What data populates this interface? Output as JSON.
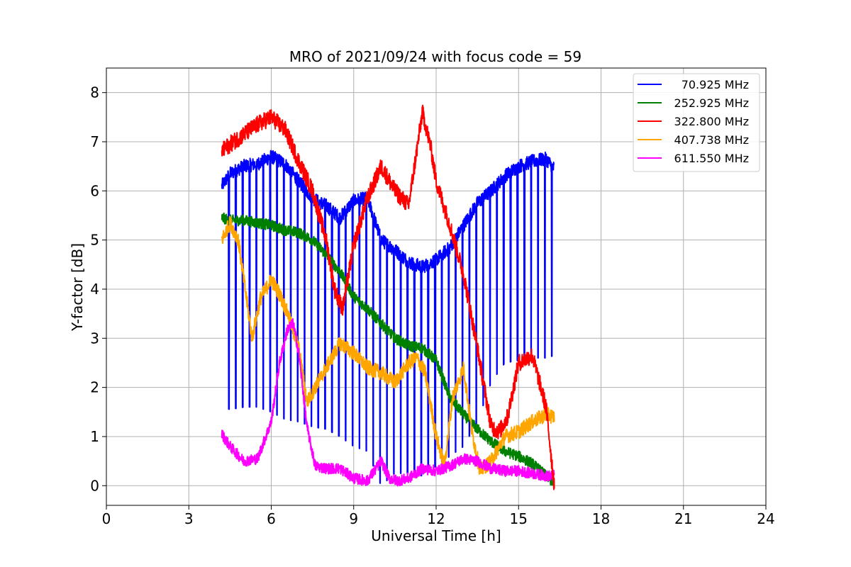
{
  "chart_data": {
    "type": "line",
    "title": "MRO of 2021/09/24 with focus code = 59",
    "xlabel": "Universal Time [h]",
    "ylabel": "Y-factor [dB]",
    "xlim": [
      0,
      24
    ],
    "ylim": [
      -0.4,
      8.5
    ],
    "xticks": [
      0,
      3,
      6,
      9,
      12,
      15,
      18,
      21,
      24
    ],
    "yticks": [
      0,
      1,
      2,
      3,
      4,
      5,
      6,
      7,
      8
    ],
    "grid": true,
    "legend_position": "top-right",
    "series": [
      {
        "name": "70.925 MHz",
        "color": "#0000ff",
        "x": [
          4.2,
          4.5,
          5.0,
          5.5,
          6.0,
          6.5,
          7.0,
          7.5,
          8.0,
          8.5,
          9.0,
          9.5,
          10.0,
          10.5,
          11.0,
          11.5,
          12.0,
          12.5,
          13.0,
          13.5,
          14.0,
          14.5,
          15.0,
          15.5,
          16.0,
          16.3
        ],
        "values": [
          6.1,
          6.35,
          6.5,
          6.55,
          6.7,
          6.55,
          6.2,
          5.85,
          5.7,
          5.45,
          5.8,
          5.85,
          5.0,
          4.8,
          4.55,
          4.45,
          4.6,
          4.85,
          5.3,
          5.75,
          6.0,
          6.3,
          6.5,
          6.6,
          6.65,
          6.45
        ],
        "dips": [
          1.6,
          1.55,
          1.6,
          1.6,
          1.5,
          1.35,
          1.3,
          1.2,
          1.15,
          1.0,
          0.8,
          0.7,
          0.0,
          0.25,
          0.25,
          0.2,
          0.4,
          0.6,
          0.8,
          1.3,
          2.1,
          2.5,
          2.55,
          2.6,
          2.6,
          2.65
        ]
      },
      {
        "name": "252.925 MHz",
        "color": "#008000",
        "x": [
          4.2,
          4.5,
          5.0,
          5.5,
          6.0,
          6.5,
          7.0,
          7.5,
          8.0,
          8.5,
          9.0,
          9.5,
          10.0,
          10.5,
          11.0,
          11.5,
          12.0,
          12.5,
          13.0,
          13.5,
          14.0,
          14.5,
          15.0,
          15.5,
          16.0,
          16.3
        ],
        "values": [
          5.45,
          5.4,
          5.4,
          5.35,
          5.3,
          5.2,
          5.15,
          5.0,
          4.7,
          4.35,
          3.85,
          3.6,
          3.3,
          3.0,
          2.85,
          2.8,
          2.55,
          1.8,
          1.45,
          1.15,
          0.9,
          0.7,
          0.6,
          0.45,
          0.2,
          0.05
        ]
      },
      {
        "name": "322.800 MHz",
        "color": "#ff0000",
        "x": [
          4.2,
          4.5,
          5.0,
          5.5,
          6.0,
          6.5,
          7.0,
          7.5,
          8.0,
          8.3,
          8.6,
          9.0,
          9.5,
          10.0,
          10.5,
          11.0,
          11.5,
          11.8,
          12.0,
          12.5,
          13.0,
          13.5,
          14.0,
          14.3,
          14.6,
          15.0,
          15.5,
          16.0,
          16.3
        ],
        "values": [
          6.8,
          6.95,
          7.15,
          7.35,
          7.5,
          7.25,
          6.6,
          6.0,
          5.0,
          4.0,
          3.6,
          4.9,
          5.85,
          6.5,
          6.0,
          5.7,
          7.6,
          6.9,
          6.2,
          5.3,
          4.3,
          2.8,
          1.2,
          1.1,
          1.4,
          2.5,
          2.65,
          1.6,
          0.0
        ]
      },
      {
        "name": "407.738 MHz",
        "color": "#ffa500",
        "x": [
          4.2,
          4.5,
          4.8,
          5.0,
          5.3,
          5.6,
          6.0,
          6.3,
          6.6,
          7.0,
          7.3,
          7.6,
          8.0,
          8.5,
          9.0,
          9.5,
          10.0,
          10.5,
          11.0,
          11.3,
          11.6,
          12.0,
          12.3,
          12.6,
          13.0,
          13.3,
          13.6,
          14.0,
          14.5,
          15.0,
          15.5,
          16.0,
          16.3
        ],
        "values": [
          5.0,
          5.35,
          5.0,
          4.2,
          3.0,
          3.8,
          4.2,
          3.9,
          3.5,
          2.8,
          1.7,
          2.0,
          2.4,
          2.9,
          2.7,
          2.4,
          2.3,
          2.1,
          2.5,
          2.6,
          2.3,
          1.0,
          0.4,
          1.8,
          2.4,
          1.1,
          0.3,
          0.5,
          1.0,
          1.1,
          1.3,
          1.45,
          1.4
        ]
      },
      {
        "name": "611.550 MHz",
        "color": "#ff00ff",
        "x": [
          4.2,
          4.5,
          5.0,
          5.5,
          6.0,
          6.3,
          6.6,
          6.8,
          7.0,
          7.3,
          7.6,
          8.0,
          8.5,
          9.0,
          9.5,
          10.0,
          10.3,
          10.6,
          11.0,
          11.5,
          12.0,
          12.5,
          13.0,
          13.5,
          14.0,
          14.5,
          15.0,
          15.5,
          16.0,
          16.3
        ],
        "values": [
          1.05,
          0.8,
          0.5,
          0.55,
          1.3,
          2.5,
          3.2,
          3.3,
          2.7,
          1.2,
          0.4,
          0.35,
          0.35,
          0.15,
          0.1,
          0.5,
          0.15,
          0.1,
          0.15,
          0.35,
          0.3,
          0.4,
          0.55,
          0.5,
          0.35,
          0.3,
          0.3,
          0.25,
          0.2,
          0.2
        ]
      }
    ]
  }
}
